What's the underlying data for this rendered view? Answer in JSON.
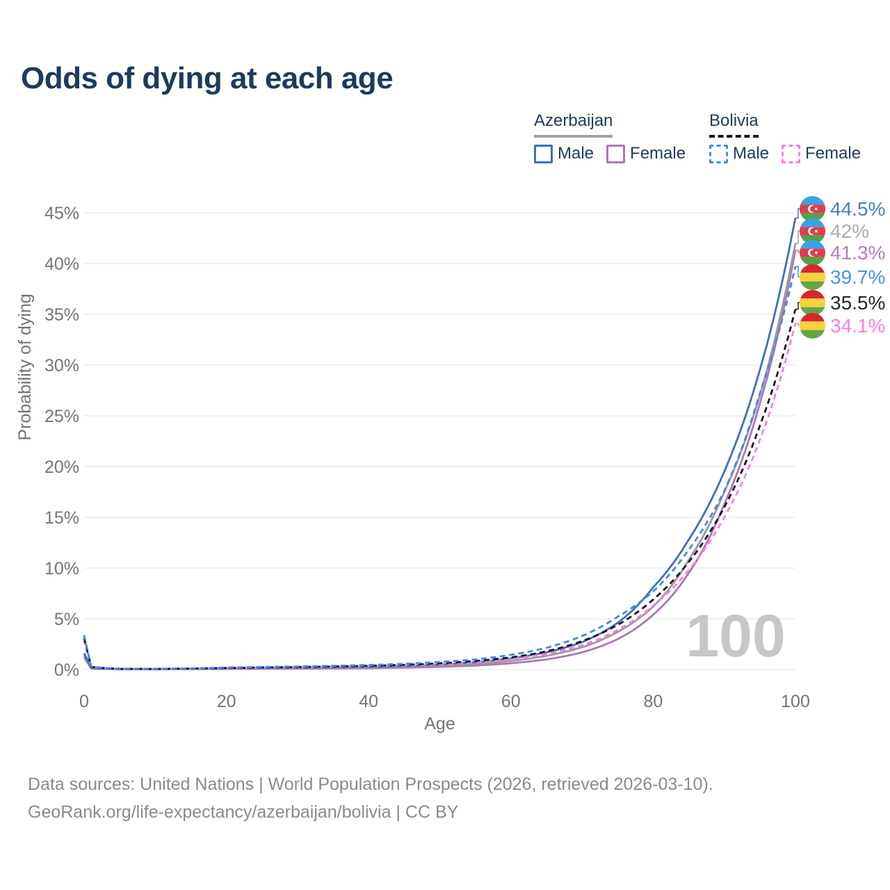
{
  "title": "Odds of dying at each age",
  "watermark": "100",
  "legend": {
    "groups": [
      {
        "label": "Azerbaijan",
        "line_style": "solid",
        "items": [
          {
            "label": "Male",
            "series": "az_male"
          },
          {
            "label": "Female",
            "series": "az_female"
          }
        ]
      },
      {
        "label": "Bolivia",
        "line_style": "dashed",
        "items": [
          {
            "label": "Male",
            "series": "bo_male"
          },
          {
            "label": "Female",
            "series": "bo_female"
          }
        ]
      }
    ]
  },
  "axes": {
    "x": {
      "label": "Age",
      "ticks": [
        0,
        20,
        40,
        60,
        80,
        100
      ],
      "range": [
        0,
        100
      ]
    },
    "y": {
      "label": "Probability of dying",
      "tick_labels": [
        "0%",
        "5%",
        "10%",
        "15%",
        "20%",
        "25%",
        "30%",
        "35%",
        "40%",
        "45%"
      ],
      "range_pct": [
        0,
        45
      ]
    }
  },
  "chart_data": {
    "type": "line",
    "title": "Odds of dying at each age",
    "xlabel": "Age",
    "ylabel": "Probability of dying",
    "xlim": [
      0,
      100
    ],
    "ylim_pct": [
      0,
      45
    ],
    "grid": true,
    "legend_position": "top-right",
    "x": [
      0,
      1,
      5,
      10,
      15,
      20,
      25,
      30,
      35,
      40,
      45,
      50,
      55,
      60,
      65,
      70,
      75,
      80,
      85,
      90,
      95,
      100
    ],
    "series": [
      {
        "id": "az_female",
        "name": "Azerbaijan Female",
        "color": "#ae74b8",
        "dash": false,
        "end_label": "41.3%",
        "values_pct": [
          1.2,
          0.11,
          0.04,
          0.03,
          0.05,
          0.06,
          0.08,
          0.09,
          0.11,
          0.14,
          0.19,
          0.27,
          0.4,
          0.62,
          1.0,
          1.7,
          3.0,
          5.4,
          9.5,
          16.3,
          26.2,
          41.3
        ]
      },
      {
        "id": "az_total",
        "name": "Azerbaijan (both sexes)",
        "color": "#9b9b9b",
        "dash": false,
        "end_label": "42%",
        "values_pct": [
          1.4,
          0.13,
          0.04,
          0.04,
          0.06,
          0.1,
          0.12,
          0.14,
          0.16,
          0.2,
          0.27,
          0.38,
          0.56,
          0.85,
          1.35,
          2.2,
          3.7,
          6.2,
          10.8,
          17.5,
          27.0,
          42.0
        ]
      },
      {
        "id": "az_male",
        "name": "Azerbaijan Male",
        "color": "#3e6fbe",
        "dash": false,
        "end_label": "44.5%",
        "values_pct": [
          1.6,
          0.15,
          0.05,
          0.05,
          0.08,
          0.13,
          0.16,
          0.18,
          0.21,
          0.26,
          0.35,
          0.5,
          0.73,
          1.1,
          1.7,
          2.7,
          4.6,
          8.1,
          12.8,
          19.5,
          29.5,
          44.5
        ]
      },
      {
        "id": "bo_female",
        "name": "Bolivia Female",
        "color": "#ff79e2",
        "dash": true,
        "end_label": "34.1%",
        "values_pct": [
          2.9,
          0.24,
          0.07,
          0.06,
          0.09,
          0.13,
          0.17,
          0.2,
          0.25,
          0.31,
          0.4,
          0.53,
          0.72,
          1.05,
          1.55,
          2.4,
          3.9,
          6.3,
          9.8,
          15.0,
          22.6,
          34.1
        ]
      },
      {
        "id": "bo_total",
        "name": "Bolivia (both sexes)",
        "color": "#171717",
        "dash": true,
        "end_label": "35.5%",
        "values_pct": [
          3.1,
          0.27,
          0.08,
          0.07,
          0.1,
          0.16,
          0.21,
          0.25,
          0.3,
          0.37,
          0.47,
          0.62,
          0.85,
          1.2,
          1.8,
          2.8,
          4.4,
          6.9,
          10.6,
          16.0,
          24.0,
          35.5
        ]
      },
      {
        "id": "bo_male",
        "name": "Bolivia Male",
        "color": "#4287ef",
        "dash": true,
        "end_label": "39.7%",
        "values_pct": [
          3.4,
          0.3,
          0.09,
          0.08,
          0.12,
          0.2,
          0.26,
          0.31,
          0.37,
          0.45,
          0.57,
          0.75,
          1.0,
          1.45,
          2.15,
          3.3,
          5.2,
          7.7,
          11.8,
          17.6,
          27.2,
          39.7
        ]
      }
    ]
  },
  "end_labels": [
    {
      "series": "az_male",
      "value": "44.5%",
      "flag": "az",
      "color": "#4a7cc9"
    },
    {
      "series": "az_total",
      "value": "42%",
      "flag": "az",
      "color": "#ababab"
    },
    {
      "series": "az_female",
      "value": "41.3%",
      "flag": "az",
      "color": "#b57cc0"
    },
    {
      "series": "bo_male",
      "value": "39.7%",
      "flag": "bo",
      "color": "#4a8ff0"
    },
    {
      "series": "bo_total",
      "value": "35.5%",
      "flag": "bo",
      "color": "#262626"
    },
    {
      "series": "bo_female",
      "value": "34.1%",
      "flag": "bo",
      "color": "#ff79e2"
    }
  ],
  "flags": {
    "az": {
      "name": "azerbaijan-flag",
      "stripes": [
        "#36a3e4",
        "#e23b4e",
        "#4fa348"
      ],
      "emblem": "crescent-star"
    },
    "bo": {
      "name": "bolivia-flag",
      "stripes": [
        "#d8262c",
        "#f7d23e",
        "#62a744"
      ],
      "emblem": "none"
    }
  },
  "footer": {
    "line1": "Data sources: United Nations | World Population Prospects (2026, retrieved 2026-03-10).",
    "line2": "GeoRank.org/life-expectancy/azerbaijan/bolivia | CC BY"
  },
  "colors": {
    "title_text": "#1d3a5f",
    "legend_text": "#223a5e",
    "axis_text": "#757575",
    "gridline": "#ebebeb",
    "watermark": "#c7c7c7",
    "footer_text": "#8a8a8a"
  }
}
